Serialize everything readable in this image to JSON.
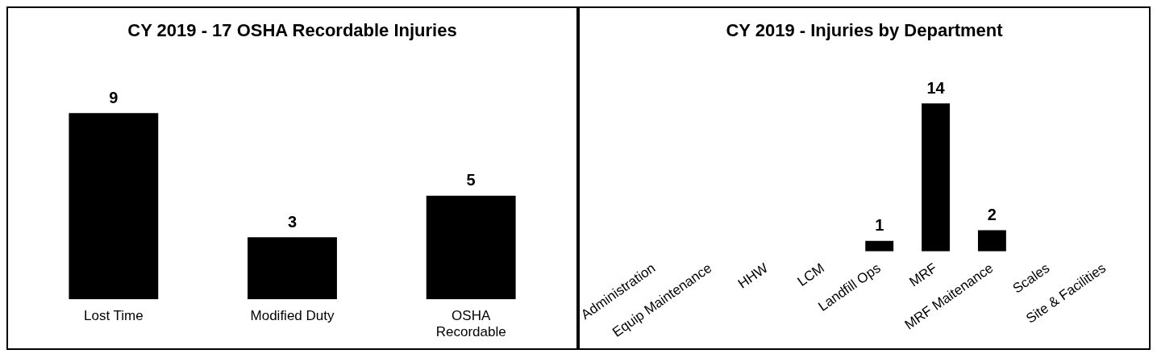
{
  "chart_data": [
    {
      "type": "bar",
      "title": "CY 2019 - 17 OSHA Recordable Injuries",
      "categories": [
        "Lost Time",
        "Modified Duty",
        "OSHA Recordable"
      ],
      "values": [
        9,
        3,
        5
      ],
      "color": "#000000",
      "data_labels": true,
      "tick_labels": "x"
    },
    {
      "type": "bar",
      "title": "CY 2019 - Injuries by Department",
      "categories": [
        "Administration",
        "Equip Maintenance",
        "HHW",
        "LCM",
        "Landfill Ops",
        "MRF",
        "MRF Maitenance",
        "Scales",
        "Site & Facilities"
      ],
      "values": [
        0,
        0,
        0,
        0,
        1,
        14,
        2,
        0,
        0
      ],
      "value_labels": [
        null,
        null,
        null,
        null,
        "1",
        "14",
        "2",
        null,
        null
      ],
      "color": "#000000",
      "tick_labels": "x"
    }
  ]
}
